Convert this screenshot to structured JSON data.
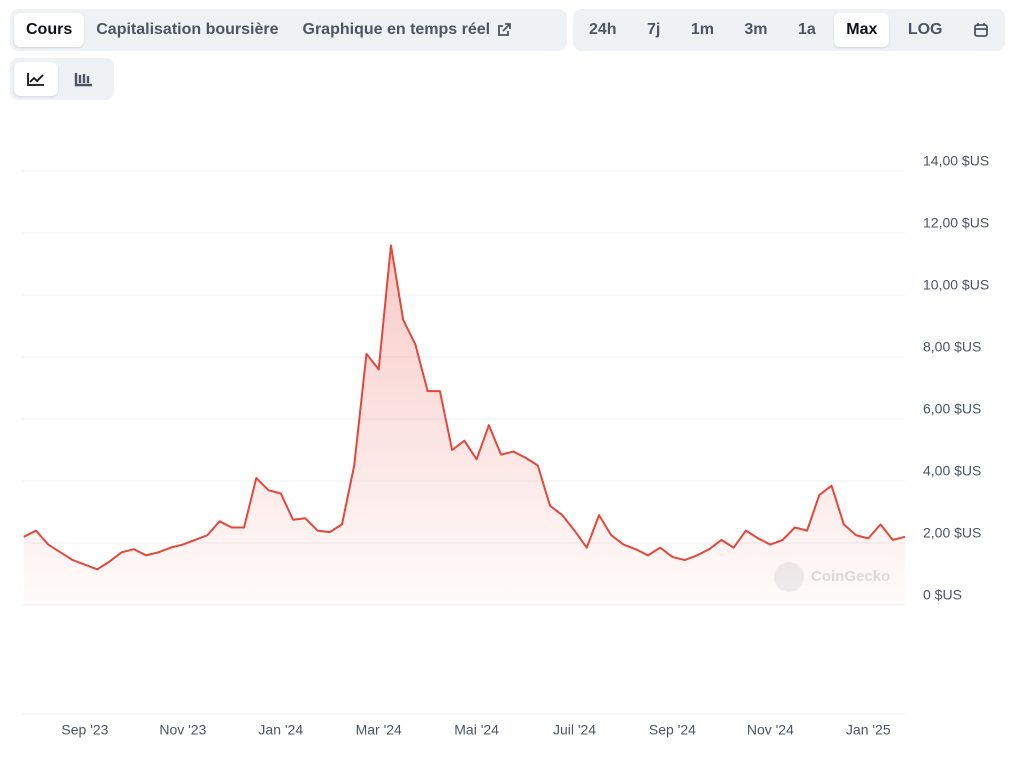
{
  "tabs": [
    "Cours",
    "Capitalisation boursière",
    "Graphique en temps réel"
  ],
  "ranges": [
    "24h",
    "7j",
    "1m",
    "3m",
    "1a",
    "Max",
    "LOG"
  ],
  "watermark": "CoinGecko",
  "chart_data": {
    "type": "line",
    "categories": [
      null,
      null,
      null,
      null,
      null,
      "Sep '23",
      null,
      null,
      null,
      null,
      null,
      null,
      null,
      "Nov '23",
      null,
      null,
      null,
      null,
      null,
      null,
      null,
      "Jan '24",
      null,
      null,
      null,
      null,
      null,
      null,
      null,
      "Mar '24",
      null,
      null,
      null,
      null,
      null,
      null,
      null,
      "Mai '24",
      null,
      null,
      null,
      null,
      null,
      null,
      null,
      "Juil '24",
      null,
      null,
      null,
      null,
      null,
      null,
      null,
      "Sep '24",
      null,
      null,
      null,
      null,
      null,
      null,
      null,
      "Nov '24",
      null,
      null,
      null,
      null,
      null,
      null,
      null,
      "Jan '25",
      null,
      null,
      null
    ],
    "series": [
      {
        "color": "#e5473b",
        "values": [
          2.2,
          2.4,
          1.95,
          1.7,
          1.45,
          1.3,
          1.15,
          1.4,
          1.7,
          1.8,
          1.6,
          1.7,
          1.85,
          1.95,
          2.1,
          2.25,
          2.7,
          2.5,
          2.5,
          4.1,
          3.7,
          3.6,
          2.75,
          2.8,
          2.4,
          2.35,
          2.6,
          4.5,
          8.1,
          7.6,
          11.6,
          9.2,
          8.4,
          6.9,
          6.9,
          5.0,
          5.3,
          4.7,
          5.8,
          4.85,
          4.95,
          4.75,
          4.5,
          3.2,
          2.9,
          2.4,
          1.85,
          2.9,
          2.25,
          1.95,
          1.8,
          1.6,
          1.85,
          1.55,
          1.45,
          1.6,
          1.8,
          2.1,
          1.85,
          2.4,
          2.15,
          1.95,
          2.1,
          2.5,
          2.4,
          3.55,
          3.85,
          2.6,
          2.25,
          2.15,
          2.6,
          2.1,
          2.2
        ]
      }
    ],
    "ylim": [
      0,
      14
    ],
    "yticks": [
      {
        "value": 0,
        "label": "0 $US"
      },
      {
        "value": 2,
        "label": "2,00 $US"
      },
      {
        "value": 4,
        "label": "4,00 $US"
      },
      {
        "value": 6,
        "label": "6,00 $US"
      },
      {
        "value": 8,
        "label": "8,00 $US"
      },
      {
        "value": 10,
        "label": "10,00 $US"
      },
      {
        "value": 12,
        "label": "12,00 $US"
      },
      {
        "value": 14,
        "label": "14,00 $US"
      }
    ],
    "grid": true
  }
}
